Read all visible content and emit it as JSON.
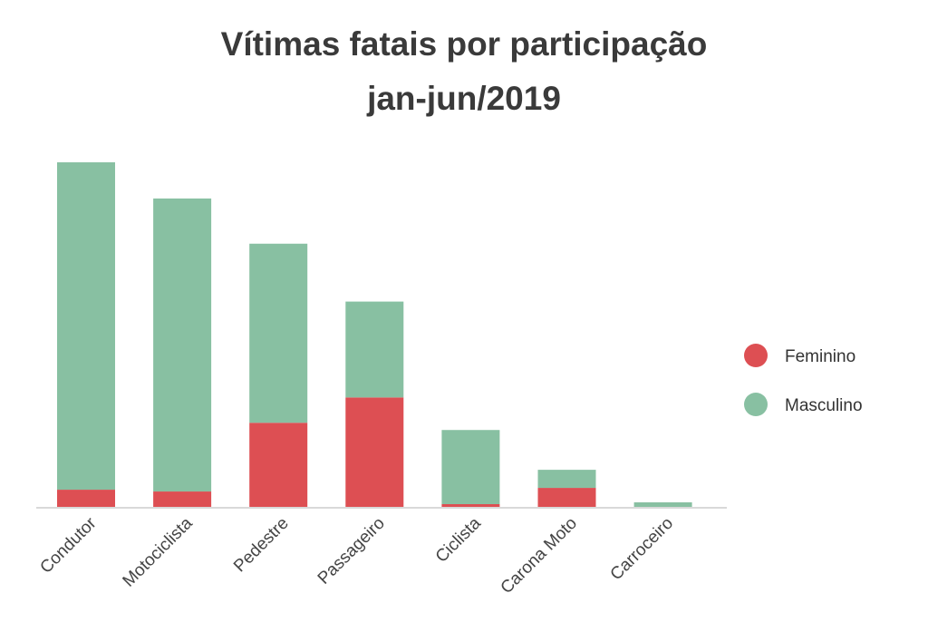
{
  "chart_data": {
    "type": "bar",
    "stacked": true,
    "title": "Vítimas fatais por participação",
    "subtitle": "jan-jun/2019",
    "xlabel": "",
    "ylabel": "",
    "categories": [
      "Condutor",
      "Motociclista",
      "Pedestre",
      "Passageiro",
      "Ciclista",
      "Carona Moto",
      "Carroceiro"
    ],
    "series": [
      {
        "name": "Feminino",
        "color": "#dd4f53",
        "values": [
          10,
          9,
          47,
          61,
          2,
          11,
          0
        ]
      },
      {
        "name": "Masculino",
        "color": "#88c0a2",
        "values": [
          181,
          162,
          99,
          53,
          41,
          10,
          3
        ]
      }
    ],
    "ylim": [
      0,
      200
    ],
    "grid": false,
    "legend_position": "right"
  }
}
